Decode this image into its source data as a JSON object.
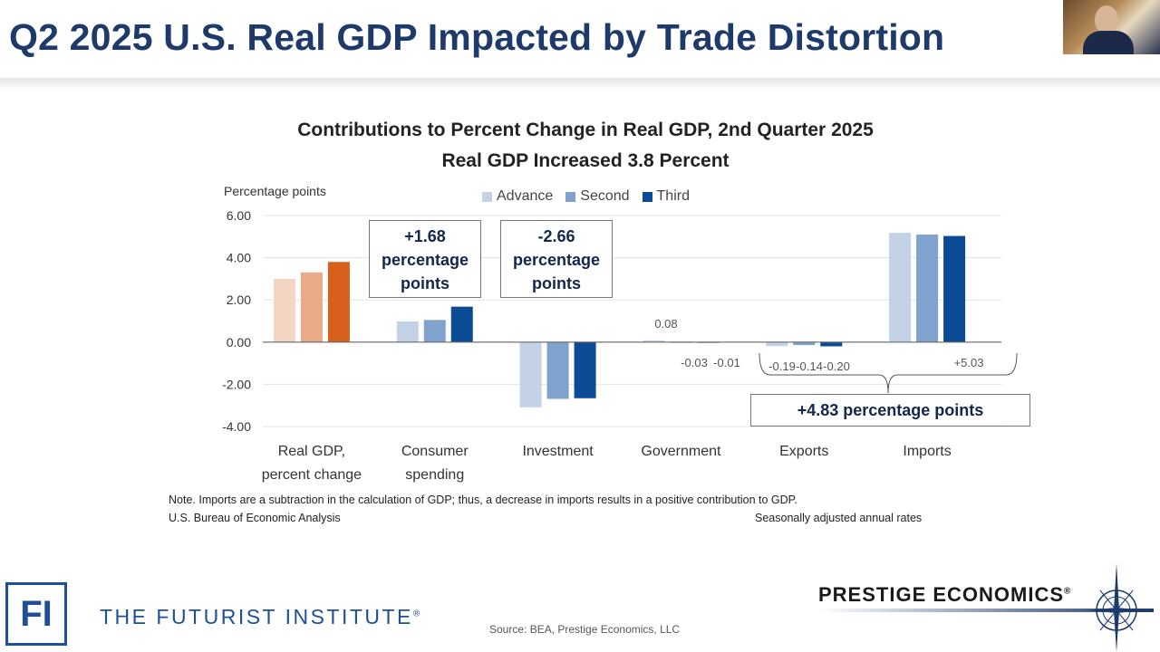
{
  "slide": {
    "title": "Q2 2025 U.S. Real GDP Impacted by Trade Distortion",
    "note": "Note. Imports are a subtraction in the calculation of GDP; thus, a decrease in imports results in a positive contribution to GDP.",
    "agency": "U.S. Bureau of Economic Analysis",
    "rates": "Seasonally adjusted annual rates",
    "source": "Source: BEA, Prestige Economics, LLC",
    "fi_logo": "FI",
    "fi_name": "THE FUTURIST INSTITUTE",
    "fi_reg": "®",
    "prestige_name": "PRESTIGE ECONOMICS",
    "prestige_reg": "®"
  },
  "annotations": {
    "consumer": [
      "+1.68",
      "percentage",
      "points"
    ],
    "investment": [
      "-2.66",
      "percentage",
      "points"
    ],
    "trade": "+4.83 percentage points"
  },
  "chart_data": {
    "type": "bar",
    "title": "Contributions to Percent Change in Real GDP, 2nd Quarter 2025",
    "subtitle": "Real GDP Increased 3.8 Percent",
    "ylabel": "Percentage points",
    "xlabel": "",
    "ylim": [
      -4,
      6
    ],
    "yticks": [
      "6.00",
      "4.00",
      "2.00",
      "0.00",
      "-2.00",
      "-4.00"
    ],
    "ytick_values": [
      6,
      4,
      2,
      0,
      -2,
      -4
    ],
    "grid": true,
    "legend_position": "top-center",
    "categories": [
      [
        "Real GDP,",
        "percent change"
      ],
      [
        "Consumer",
        "spending"
      ],
      [
        "Investment"
      ],
      [
        "Government"
      ],
      [
        "Exports"
      ],
      [
        "Imports"
      ]
    ],
    "series": [
      {
        "name": "Advance",
        "color": "#c3d2e6",
        "gdp_color": "#f3d5c3",
        "values": [
          3.0,
          0.98,
          -3.09,
          0.08,
          -0.19,
          5.18
        ]
      },
      {
        "name": "Second",
        "color": "#7fa3cc",
        "gdp_color": "#e9ab87",
        "values": [
          3.3,
          1.05,
          -2.69,
          -0.03,
          -0.14,
          5.1
        ]
      },
      {
        "name": "Third",
        "color": "#0b4a95",
        "gdp_color": "#d9601c",
        "values": [
          3.8,
          1.68,
          -2.66,
          -0.01,
          -0.2,
          5.03
        ]
      }
    ],
    "data_labels": {
      "government": [
        "0.08",
        "-0.03",
        "-0.01"
      ],
      "exports": [
        "-0.19",
        "-0.14",
        "-0.20"
      ],
      "imports": "+5.03"
    }
  }
}
